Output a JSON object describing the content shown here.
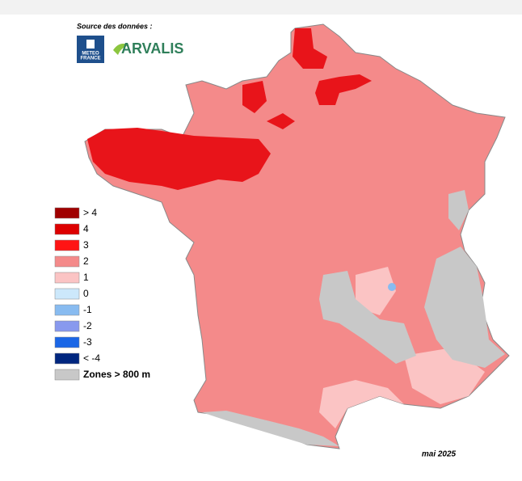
{
  "header": {
    "source": "Source des données :",
    "logo_meteo": [
      "METEO",
      "FRANCE"
    ],
    "logo_arvalis": "ARVALIS"
  },
  "legend": {
    "items": [
      {
        "label": "> 4",
        "color": "#a00000"
      },
      {
        "label": "4",
        "color": "#dd0000"
      },
      {
        "label": "3",
        "color": "#ff1414"
      },
      {
        "label": "2",
        "color": "#f48a8a"
      },
      {
        "label": "1",
        "color": "#fbc4c4"
      },
      {
        "label": "0",
        "color": "#cce8fb"
      },
      {
        "label": "-1",
        "color": "#88bbf0"
      },
      {
        "label": "-2",
        "color": "#8899ee"
      },
      {
        "label": "-3",
        "color": "#1a66e6"
      },
      {
        "label": "< -4",
        "color": "#00267f"
      },
      {
        "label": "Zones > 800 m",
        "color": "#c8c8c8"
      }
    ]
  },
  "footer": {
    "date": "mai 2025"
  }
}
